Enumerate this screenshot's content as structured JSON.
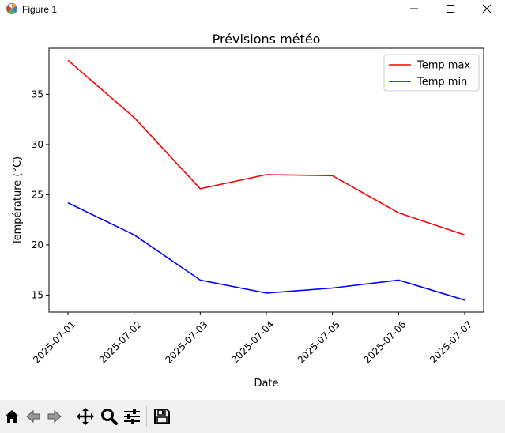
{
  "window": {
    "title": "Figure 1",
    "icons": [
      "matplotlib-icon",
      "minimize-icon",
      "maximize-icon",
      "close-icon"
    ]
  },
  "toolbar": {
    "items": [
      "home-icon",
      "back-arrow-icon",
      "forward-arrow-icon",
      "pan-icon",
      "zoom-icon",
      "configure-subplots-icon",
      "save-icon"
    ]
  },
  "chart_data": {
    "type": "line",
    "title": "Prévisions météo",
    "xlabel": "Date",
    "ylabel": "Température (°C)",
    "x": [
      "2025-07-01",
      "2025-07-02",
      "2025-07-03",
      "2025-07-04",
      "2025-07-05",
      "2025-07-06",
      "2025-07-07"
    ],
    "series": [
      {
        "name": "Temp max",
        "color": "#ff0000",
        "values": [
          38.4,
          32.7,
          25.6,
          27.0,
          26.9,
          23.2,
          21.0
        ]
      },
      {
        "name": "Temp min",
        "color": "#0000ff",
        "values": [
          24.2,
          21.0,
          16.5,
          15.2,
          15.7,
          16.5,
          14.5
        ]
      }
    ],
    "yticks": [
      15,
      20,
      25,
      30,
      35
    ],
    "ylim": [
      13.3,
      39.6
    ],
    "grid": false,
    "legend": "top-right"
  }
}
